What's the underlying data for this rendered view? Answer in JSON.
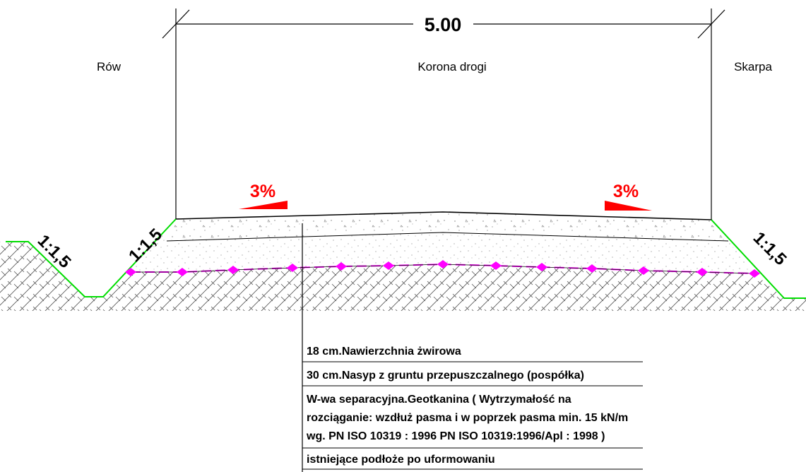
{
  "dimension": {
    "value": "5.00"
  },
  "zones": {
    "left": "Rów",
    "center": "Korona drogi",
    "right": "Skarpa"
  },
  "crossfall": {
    "left": "3%",
    "right": "3%",
    "color": "#ff0000"
  },
  "slopes": {
    "ditch_outer": "1:1,5",
    "ditch_inner": "1:1,5",
    "embankment": "1:1,5",
    "color": "#00dd00"
  },
  "geotextile_color": "#ff00ff",
  "layers": [
    {
      "lines": [
        "18 cm.Nawierzchnia żwirowa"
      ]
    },
    {
      "lines": [
        "30 cm.Nasyp z gruntu przepuszczalnego (pospółka)"
      ]
    },
    {
      "lines": [
        "W-wa separacyjna.Geotkanina ( Wytrzymałość na",
        "rozciąganie: wzdłuż pasma i w poprzek pasma min. 15 kN/m",
        "wg. PN ISO 10319 : 1996 PN ISO 10319:1996/Apl : 1998 )"
      ]
    },
    {
      "lines": [
        "istniejące podłoże po uformowaniu"
      ]
    }
  ]
}
